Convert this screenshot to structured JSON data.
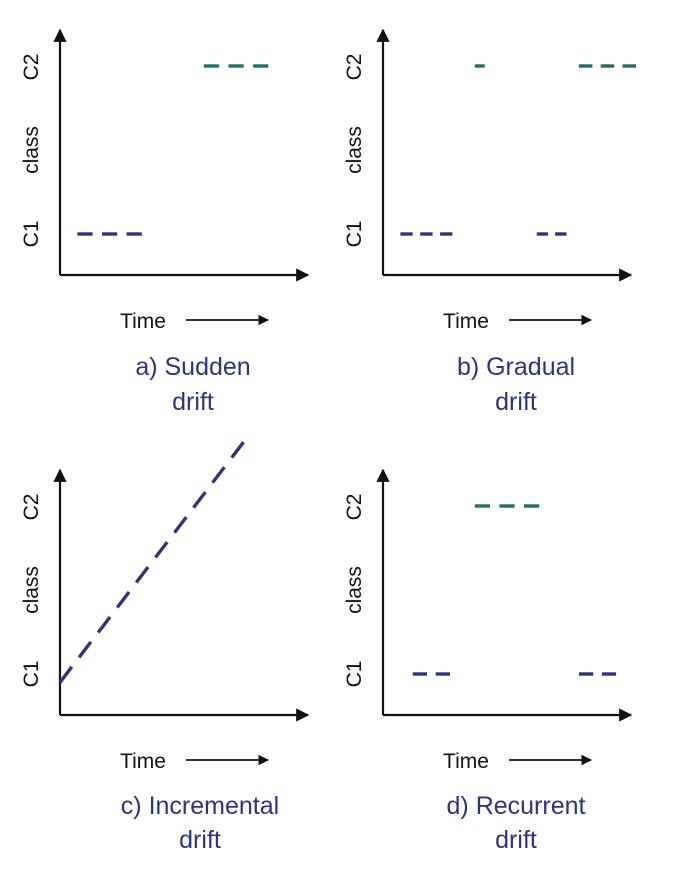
{
  "colors": {
    "axis": "#111111",
    "c1_series": "#2b3480",
    "c2_series": "#1f6f6a",
    "caption": "#2b3480"
  },
  "axis_labels": {
    "y_top": "C2",
    "y_mid": "class",
    "y_bottom": "C1",
    "x": "Time"
  },
  "panels": [
    {
      "id": "sudden",
      "caption_line1": "a) Sudden",
      "caption_line2": "drift",
      "segments": [
        {
          "series": "c1",
          "type": "flat",
          "level": "C1",
          "t_start": 0.07,
          "t_end": 0.33,
          "dashes": 3
        },
        {
          "series": "c2",
          "type": "flat",
          "level": "C2",
          "t_start": 0.58,
          "t_end": 0.84,
          "dashes": 3
        }
      ]
    },
    {
      "id": "gradual",
      "caption_line1": "b) Gradual",
      "caption_line2": "drift",
      "segments": [
        {
          "series": "c1",
          "type": "flat",
          "level": "C1",
          "t_start": 0.07,
          "t_end": 0.28,
          "dashes": 3
        },
        {
          "series": "c2",
          "type": "flat",
          "level": "C2",
          "t_start": 0.37,
          "t_end": 0.41,
          "dashes": 1
        },
        {
          "series": "c1",
          "type": "flat",
          "level": "C1",
          "t_start": 0.62,
          "t_end": 0.74,
          "dashes": 2
        },
        {
          "series": "c2",
          "type": "flat",
          "level": "C2",
          "t_start": 0.79,
          "t_end": 1.02,
          "dashes": 3
        }
      ]
    },
    {
      "id": "incremental",
      "caption_line1": "c) Incremental",
      "caption_line2": "drift",
      "segments": [
        {
          "series": "c1",
          "type": "ramp",
          "t_start": 0.0,
          "v_start": -0.05,
          "t_end": 0.74,
          "v_end": 1.38,
          "dashes": 10
        }
      ]
    },
    {
      "id": "recurrent",
      "caption_line1": "d) Recurrent",
      "caption_line2": "drift",
      "segments": [
        {
          "series": "c1",
          "type": "flat",
          "level": "C1",
          "t_start": 0.12,
          "t_end": 0.27,
          "dashes": 2
        },
        {
          "series": "c2",
          "type": "flat",
          "level": "C2",
          "t_start": 0.37,
          "t_end": 0.63,
          "dashes": 3
        },
        {
          "series": "c1",
          "type": "flat",
          "level": "C1",
          "t_start": 0.79,
          "t_end": 0.94,
          "dashes": 2
        }
      ]
    }
  ]
}
